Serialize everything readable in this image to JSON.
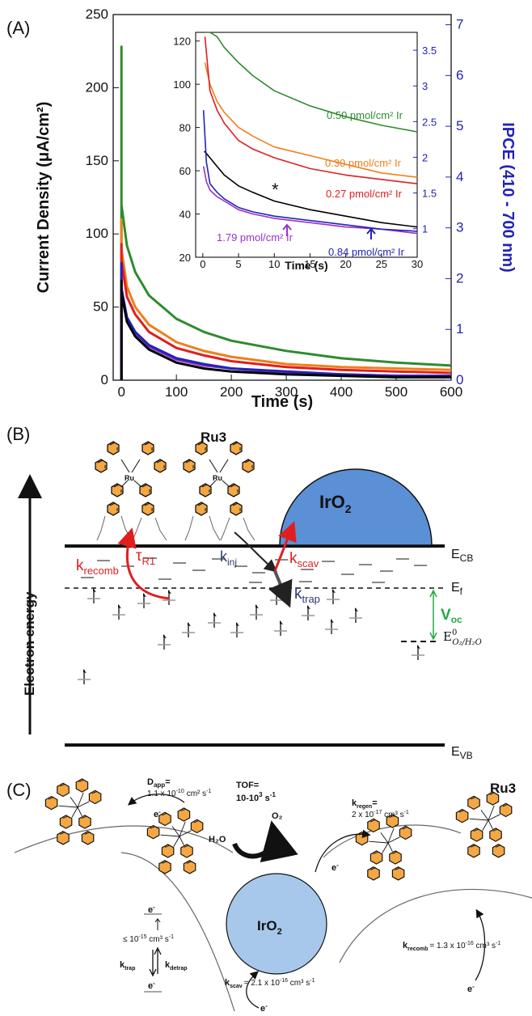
{
  "panel_a": {
    "label": "(A)",
    "y_left_label": "Current Density (μA/cm²)",
    "y_right_label": "IPCE (410 - 700 nm)",
    "x_label": "Time (s)",
    "inset_x_label": "Time (s)",
    "star": "*",
    "annotations": [
      {
        "text": "0.50 pmol/cm² Ir",
        "color": "#2e8b2e"
      },
      {
        "text": "0.30 pmol/cm² Ir",
        "color": "#f07f1a"
      },
      {
        "text": "0.27 pmol/cm² Ir",
        "color": "#e01e1e"
      },
      {
        "text": "1.79 pmol/cm² Ir",
        "color": "#9b30c8"
      },
      {
        "text": "0.84 pmol/cm² Ir",
        "color": "#2323b8"
      }
    ]
  },
  "chart_data": [
    {
      "type": "line",
      "xlabel": "Time (s)",
      "ylabel": "Current Density (μA/cm²)",
      "y2label": "IPCE (410 - 700 nm)",
      "xlim": [
        -15,
        600
      ],
      "ylim": [
        0,
        250
      ],
      "y2lim": [
        0,
        7.2
      ],
      "xticks": [
        0,
        100,
        200,
        300,
        400,
        500,
        600
      ],
      "yticks": [
        0,
        50,
        100,
        150,
        200,
        250
      ],
      "y2ticks": [
        0,
        1,
        2,
        3,
        4,
        5,
        6,
        7
      ],
      "series": [
        {
          "color": "#2e8b2e",
          "peak": 228,
          "x": [
            0,
            10,
            25,
            50,
            100,
            150,
            200,
            300,
            400,
            500,
            600
          ],
          "y": [
            120,
            92,
            74,
            58,
            42,
            33,
            27,
            20,
            15,
            12,
            10
          ]
        },
        {
          "color": "#f07f1a",
          "peak": 110,
          "x": [
            0,
            10,
            25,
            50,
            100,
            150,
            200,
            300,
            400,
            500,
            600
          ],
          "y": [
            90,
            64,
            50,
            38,
            26,
            20,
            16,
            11,
            9,
            8,
            7
          ]
        },
        {
          "color": "#e01e1e",
          "peak": 93,
          "x": [
            0,
            10,
            25,
            50,
            100,
            150,
            200,
            300,
            400,
            500,
            600
          ],
          "y": [
            82,
            57,
            45,
            33,
            22,
            17,
            13,
            9,
            7,
            6,
            5
          ]
        },
        {
          "color": "#9b30c8",
          "peak": 78,
          "x": [
            0,
            10,
            25,
            50,
            100,
            150,
            200,
            300,
            400,
            500,
            600
          ],
          "y": [
            62,
            42,
            32,
            23,
            14,
            10,
            8,
            5,
            4,
            3,
            3
          ]
        },
        {
          "color": "#2323b8",
          "peak": 80,
          "x": [
            0,
            10,
            25,
            50,
            100,
            150,
            200,
            300,
            400,
            500,
            600
          ],
          "y": [
            63,
            43,
            33,
            24,
            15,
            11,
            8,
            6,
            4,
            3,
            3
          ]
        },
        {
          "color": "#000000",
          "peak": 68,
          "x": [
            0,
            10,
            25,
            50,
            100,
            150,
            200,
            300,
            400,
            500,
            600
          ],
          "y": [
            60,
            40,
            30,
            21,
            12,
            8,
            6,
            4,
            3,
            2,
            2
          ]
        }
      ]
    },
    {
      "type": "line",
      "xlabel": "Time (s)",
      "xlim": [
        -1,
        30
      ],
      "ylim": [
        20,
        124
      ],
      "y2lim": [
        0.6,
        3.75
      ],
      "xticks": [
        0,
        5,
        10,
        15,
        20,
        25,
        30
      ],
      "yticks": [
        20,
        40,
        60,
        80,
        100,
        120
      ],
      "y2ticks": [
        1,
        1.5,
        2,
        2.5,
        3,
        3.5
      ],
      "series": [
        {
          "color": "#2e8b2e",
          "x": [
            0.3,
            1,
            2,
            3,
            5,
            7,
            10,
            15,
            20,
            25,
            30
          ],
          "y": [
            124,
            124,
            122,
            117,
            110,
            104,
            97,
            90,
            85,
            81,
            78
          ]
        },
        {
          "color": "#f07f1a",
          "x": [
            0.3,
            1,
            2,
            3,
            5,
            7,
            10,
            15,
            20,
            25,
            30
          ],
          "y": [
            110,
            100,
            92,
            87,
            80,
            76,
            71,
            67,
            63,
            59,
            57
          ]
        },
        {
          "color": "#e01e1e",
          "x": [
            0.3,
            1,
            2,
            3,
            5,
            7,
            10,
            15,
            20,
            25,
            30
          ],
          "y": [
            122,
            97,
            88,
            82,
            74,
            70,
            66,
            61,
            58,
            56,
            54
          ]
        },
        {
          "color": "#000000",
          "x": [
            0.2,
            0.5,
            1,
            2,
            3,
            5,
            7,
            10,
            15,
            20,
            25,
            30
          ],
          "y": [
            69,
            68,
            66,
            62,
            58,
            53,
            50,
            46,
            42,
            39,
            36,
            34
          ]
        },
        {
          "color": "#9b30c8",
          "x": [
            0.1,
            0.5,
            1,
            2,
            3,
            5,
            7,
            10,
            15,
            20,
            25,
            30
          ],
          "y": [
            62,
            55,
            51,
            48,
            46,
            42,
            40,
            38,
            36,
            34,
            33,
            31
          ]
        },
        {
          "color": "#2323b8",
          "x": [
            0.1,
            0.5,
            1,
            2,
            3,
            5,
            7,
            10,
            15,
            20,
            25,
            30
          ],
          "y": [
            88,
            64,
            54,
            50,
            47,
            43,
            41,
            39,
            37,
            35,
            33,
            32
          ]
        }
      ]
    }
  ],
  "panel_b": {
    "label": "(B)",
    "ru3": "Ru3",
    "ru_atom": "Ru",
    "iro2": "IrO",
    "iro2_sub": "2",
    "ecb": "E",
    "ecb_sub": "CB",
    "evb": "E",
    "evb_sub": "VB",
    "ef": "E",
    "ef_sub": "f",
    "eo2": "E",
    "eo2_sup": "0",
    "eo2_sub": "O₂/H₂O",
    "voc": "V",
    "voc_sub": "oc",
    "electron_energy": "Electron energy",
    "k_recomb": "k",
    "k_recomb_sub": "recomb",
    "tau": "τ",
    "tau_sub": "R1",
    "k_inj": "k",
    "k_inj_sub": "inj",
    "k_scav": "k",
    "k_scav_sub": "scav",
    "k_trap": "k",
    "k_trap_sub": "trap",
    "red": "#e01e1e",
    "green": "#22aa44",
    "orange": "#f4a742",
    "sphere": "#5b8fd6"
  },
  "panel_c": {
    "label": "(C)",
    "d_app_l1": "D",
    "d_app_sub": "app",
    "d_app_eq": "=",
    "d_app_l2": "1.1 x 10",
    "d_app_exp": "-10",
    "d_app_units": "cm² s",
    "d_app_exp2": "-1",
    "tof_l1": "TOF=",
    "tof_l2": "10-10",
    "tof_exp": "3",
    "tof_units": " s",
    "tof_exp2": "-1",
    "h2o": "H₂O",
    "o2": "O₂",
    "ru3": "Ru3",
    "iro2": "IrO",
    "iro2_sub": "2",
    "k_regen": "k",
    "k_regen_sub": "regen",
    "k_regen_eq": "=",
    "k_regen_val": "2 x 10",
    "k_regen_exp": "-17",
    "k_regen_units": " cm³ s",
    "k_regen_exp2": "-1",
    "le": "≤ 10",
    "le_exp": "-15",
    "le_units": " cm³ s",
    "le_exp2": "-1",
    "k_trap": "k",
    "k_trap_sub": "trap",
    "k_detrap": "k",
    "k_detrap_sub": "detrap",
    "k_scav": "k",
    "k_scav_sub": "scav",
    "k_scav_val": "= 2.1 x 10",
    "k_scav_exp": "-16",
    "k_scav_units": " cm³ s",
    "k_scav_exp2": "-1",
    "k_recomb": "k",
    "k_recomb_sub": "recomb",
    "k_recomb_val": "= 1.3 x 10",
    "k_recomb_exp": "-16",
    "k_recomb_units": " cm³ s",
    "k_recomb_exp2": "-1",
    "electron": "e",
    "electron_sup": "-",
    "sphere": "#a7c8ea",
    "orange": "#f4a742"
  }
}
